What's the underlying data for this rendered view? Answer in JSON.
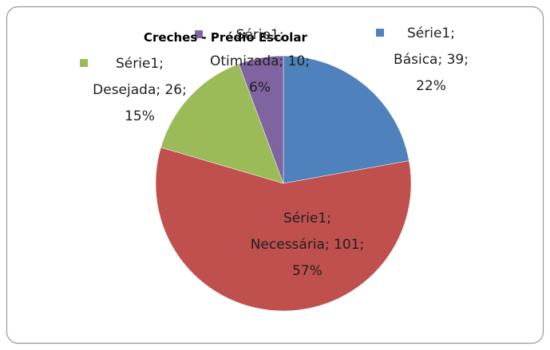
{
  "chart_data": {
    "type": "pie",
    "title": "Creches - Prédio Escolar",
    "series_name": "Série1",
    "categories": [
      "Básica",
      "Necessária",
      "Desejada",
      "Otimizada"
    ],
    "values": [
      39,
      101,
      26,
      10
    ],
    "value_labels": [
      "Série1; Básica; 39; 22%",
      "Série1; Necessária; 101; 57%",
      "Série1; Desejada; 26; 15%",
      "Série1; Otimizada; 10; 6%"
    ],
    "colors": [
      "#4f81bd",
      "#c0504d",
      "#9bbb59",
      "#8064a2"
    ]
  }
}
